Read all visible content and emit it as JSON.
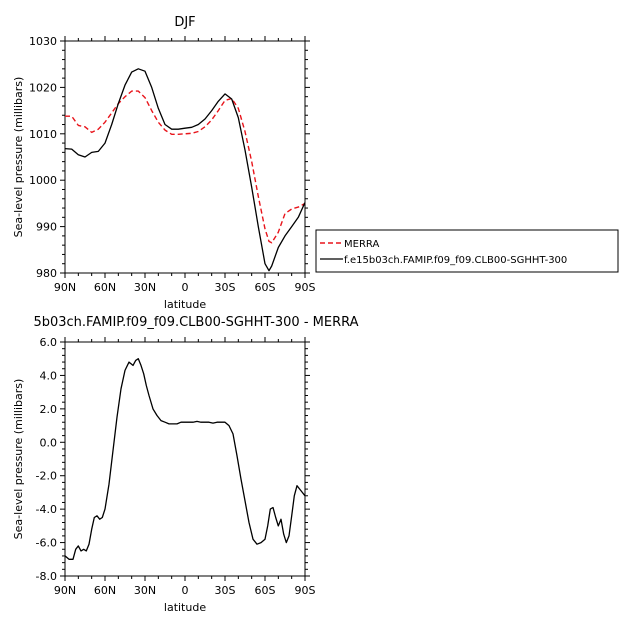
{
  "chart_data": [
    {
      "type": "line",
      "title": "DJF",
      "xlabel": "latitude",
      "ylabel": "Sea-level pressure (millibars)",
      "x_tick_labels": [
        "90N",
        "60N",
        "30N",
        "0",
        "30S",
        "60S",
        "90S"
      ],
      "x_ticks": [
        90,
        60,
        30,
        0,
        -30,
        -60,
        -90
      ],
      "xlim": [
        90,
        -90
      ],
      "ylim": [
        980,
        1030
      ],
      "y_ticks": [
        "980",
        "990",
        "1000",
        "1010",
        "1020",
        "1030"
      ],
      "series": [
        {
          "name": "MERRA",
          "color": "#e8141b",
          "dash": "dashed",
          "x": [
            90,
            85,
            80,
            75,
            70,
            65,
            60,
            55,
            50,
            45,
            40,
            35,
            30,
            25,
            20,
            15,
            10,
            5,
            0,
            -5,
            -10,
            -15,
            -20,
            -25,
            -30,
            -35,
            -40,
            -45,
            -50,
            -55,
            -60,
            -63,
            -65,
            -70,
            -75,
            -80,
            -85,
            -90
          ],
          "y": [
            1013.8,
            1013.8,
            1011.8,
            1011.5,
            1010.3,
            1011.0,
            1012.5,
            1014.5,
            1016.5,
            1018.0,
            1019.2,
            1019.2,
            1017.8,
            1015.0,
            1012.5,
            1010.8,
            1009.9,
            1009.9,
            1010.0,
            1010.1,
            1010.5,
            1011.5,
            1013.0,
            1015.0,
            1017.2,
            1017.6,
            1015.5,
            1010.5,
            1004.0,
            996.5,
            989.5,
            986.8,
            986.5,
            988.8,
            992.8,
            993.8,
            994.2,
            995.0
          ]
        },
        {
          "name": "f.e15b03ch.FAMIP.f09_f09.CLB00-SGHHT-300",
          "color": "#000000",
          "dash": "solid",
          "x": [
            90,
            85,
            80,
            75,
            70,
            65,
            60,
            55,
            50,
            45,
            40,
            35,
            30,
            25,
            20,
            15,
            10,
            5,
            0,
            -5,
            -10,
            -15,
            -20,
            -25,
            -30,
            -35,
            -40,
            -45,
            -50,
            -55,
            -60,
            -63,
            -65,
            -70,
            -75,
            -80,
            -85,
            -90
          ],
          "y": [
            1006.8,
            1006.7,
            1005.5,
            1005.0,
            1006.0,
            1006.2,
            1008.0,
            1012.0,
            1016.5,
            1020.5,
            1023.3,
            1024.0,
            1023.5,
            1020.0,
            1015.5,
            1012.0,
            1011.0,
            1011.0,
            1011.2,
            1011.4,
            1012.0,
            1013.2,
            1015.0,
            1017.0,
            1018.6,
            1017.5,
            1013.5,
            1006.5,
            998.5,
            990.0,
            982.0,
            980.5,
            981.5,
            985.5,
            988.0,
            990.0,
            992.0,
            995.2
          ]
        }
      ],
      "legend_placement": "right"
    },
    {
      "type": "line",
      "title": "5b03ch.FAMIP.f09_f09.CLB00-SGHHT-300 - MERRA",
      "xlabel": "latitude",
      "ylabel": "Sea-level pressure (millibars)",
      "x_tick_labels": [
        "90N",
        "60N",
        "30N",
        "0",
        "30S",
        "60S",
        "90S"
      ],
      "x_ticks": [
        90,
        60,
        30,
        0,
        -30,
        -60,
        -90
      ],
      "xlim": [
        90,
        -90
      ],
      "ylim": [
        -8,
        6
      ],
      "y_ticks": [
        "-8.0",
        "-6.0",
        "-4.0",
        "-2.0",
        "0.0",
        "2.0",
        "4.0",
        "6.0"
      ],
      "series": [
        {
          "color": "#000000",
          "dash": "solid",
          "x": [
            90,
            87,
            84,
            82,
            80,
            78,
            76,
            74,
            72,
            70,
            68,
            66,
            64,
            62,
            60,
            57,
            54,
            51,
            48,
            45,
            42,
            39,
            37,
            35,
            33,
            31,
            29,
            27,
            24,
            21,
            18,
            15,
            12,
            9,
            6,
            3,
            0,
            -3,
            -6,
            -9,
            -12,
            -15,
            -18,
            -21,
            -24,
            -27,
            -30,
            -33,
            -36,
            -39,
            -42,
            -45,
            -48,
            -51,
            -54,
            -57,
            -60,
            -62,
            -64,
            -66,
            -68,
            -70,
            -72,
            -74,
            -76,
            -78,
            -80,
            -82,
            -84,
            -86,
            -88,
            -90
          ],
          "y": [
            -6.8,
            -7.0,
            -7.0,
            -6.4,
            -6.2,
            -6.5,
            -6.4,
            -6.5,
            -6.1,
            -5.2,
            -4.5,
            -4.4,
            -4.6,
            -4.5,
            -4.0,
            -2.5,
            -0.5,
            1.5,
            3.2,
            4.3,
            4.8,
            4.6,
            4.9,
            5.0,
            4.6,
            4.1,
            3.4,
            2.8,
            2.0,
            1.6,
            1.3,
            1.2,
            1.1,
            1.1,
            1.1,
            1.2,
            1.2,
            1.2,
            1.2,
            1.25,
            1.2,
            1.2,
            1.2,
            1.15,
            1.2,
            1.2,
            1.2,
            1.0,
            0.5,
            -0.8,
            -2.2,
            -3.5,
            -4.8,
            -5.8,
            -6.1,
            -6.0,
            -5.8,
            -5.0,
            -4.0,
            -3.9,
            -4.5,
            -5.0,
            -4.6,
            -5.5,
            -6.0,
            -5.6,
            -4.4,
            -3.2,
            -2.6,
            -2.8,
            -3.0,
            -3.2
          ]
        }
      ]
    }
  ]
}
